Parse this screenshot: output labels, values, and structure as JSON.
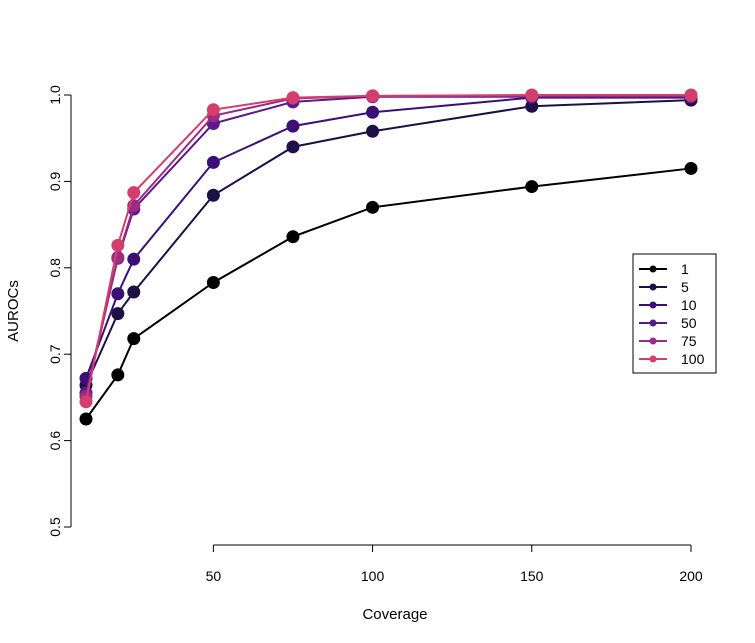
{
  "chart_data": {
    "type": "line",
    "xlabel": "Coverage",
    "ylabel": "AUROCs",
    "x": [
      10,
      20,
      25,
      50,
      75,
      100,
      150,
      200
    ],
    "xticks": [
      50,
      100,
      150,
      200
    ],
    "yticks": [
      0.5,
      0.6,
      0.7,
      0.8,
      0.9,
      1.0
    ],
    "ytick_labels": [
      "0.5",
      "0.6",
      "0.7",
      "0.8",
      "0.9",
      "1.0"
    ],
    "xlim": [
      10,
      200
    ],
    "ylim": [
      0.5,
      1.0
    ],
    "legend_position": "right",
    "grid": false,
    "series": [
      {
        "name": "1",
        "color": "#000000",
        "values": [
          0.625,
          0.676,
          0.718,
          0.783,
          0.836,
          0.87,
          0.894,
          0.915
        ]
      },
      {
        "name": "5",
        "color": "#1c1044",
        "values": [
          0.664,
          0.747,
          0.772,
          0.884,
          0.94,
          0.958,
          0.987,
          0.994
        ]
      },
      {
        "name": "10",
        "color": "#3b1076",
        "values": [
          0.672,
          0.77,
          0.81,
          0.922,
          0.964,
          0.98,
          0.997,
          0.997
        ]
      },
      {
        "name": "50",
        "color": "#5a1a8a",
        "values": [
          0.655,
          0.811,
          0.868,
          0.967,
          0.992,
          0.998,
          0.998,
          0.998
        ]
      },
      {
        "name": "75",
        "color": "#9a2d83",
        "values": [
          0.651,
          0.812,
          0.872,
          0.976,
          0.996,
          0.999,
          0.999,
          0.999
        ]
      },
      {
        "name": "100",
        "color": "#d43e6c",
        "values": [
          0.645,
          0.826,
          0.887,
          0.983,
          0.997,
          0.999,
          1.0,
          1.0
        ]
      }
    ]
  }
}
